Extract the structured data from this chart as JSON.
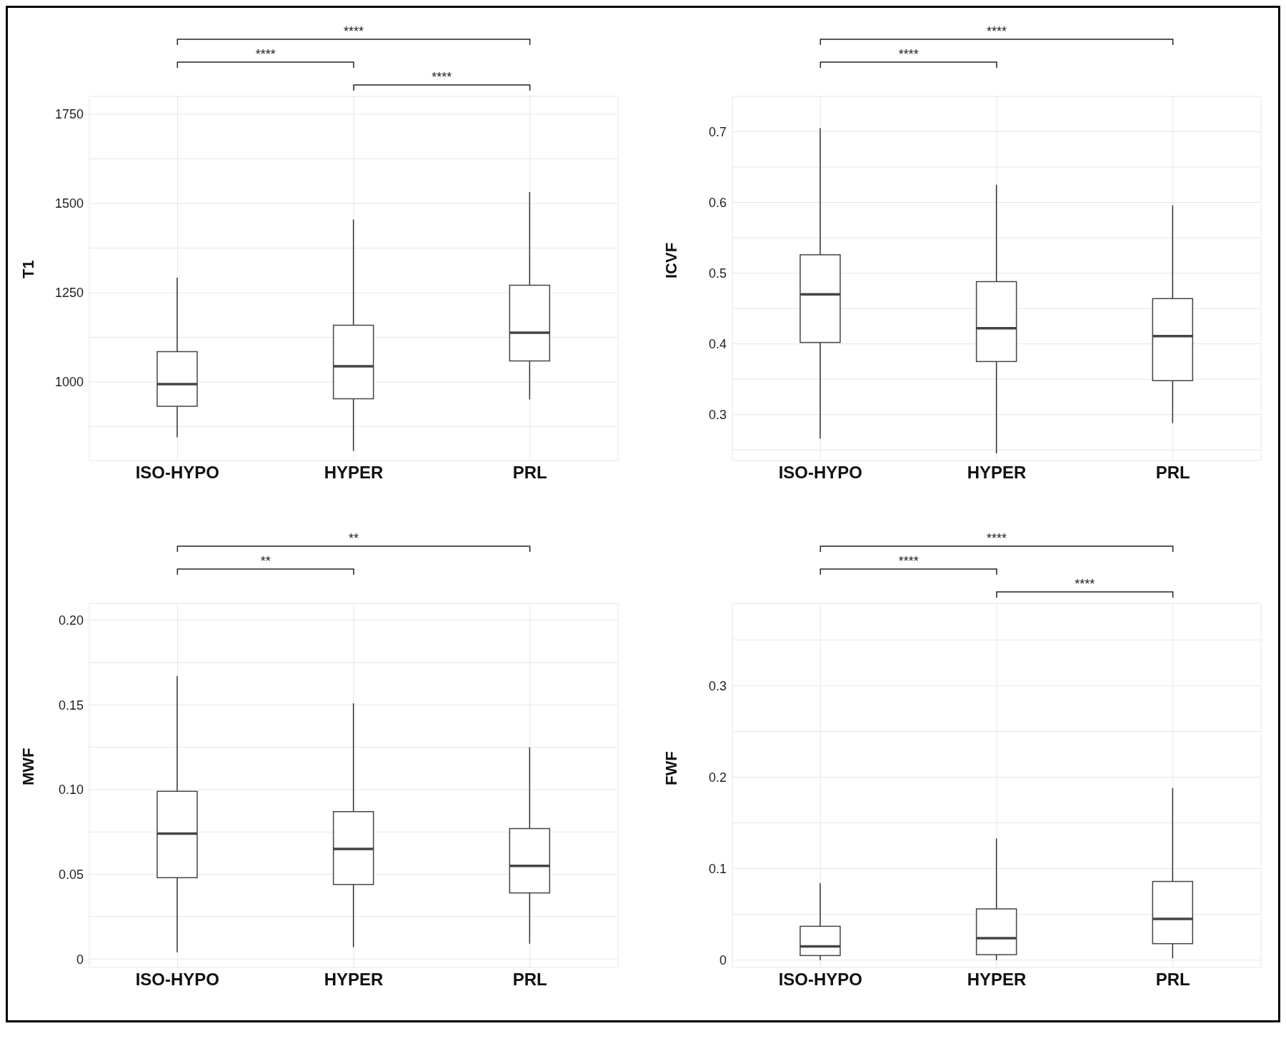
{
  "chart_data": [
    {
      "type": "box",
      "ylabel": "T1",
      "categories": [
        "ISO-HYPO",
        "HYPER",
        "PRL"
      ],
      "ylim": [
        780,
        1800
      ],
      "yticks": [
        {
          "value": 875,
          "label": null
        },
        1000,
        {
          "value": 1125,
          "label": null
        },
        1250,
        {
          "value": 1375,
          "label": null
        },
        1500,
        {
          "value": 1625,
          "label": null
        },
        1750
      ],
      "grid": true,
      "boxes": [
        {
          "low": 845,
          "q1": 932,
          "median": 994,
          "q3": 1085,
          "high": 1292
        },
        {
          "low": 807,
          "q1": 953,
          "median": 1044,
          "q3": 1159,
          "high": 1455
        },
        {
          "low": 951,
          "q1": 1059,
          "median": 1138,
          "q3": 1271,
          "high": 1532
        }
      ],
      "annotations": [
        "****",
        "****",
        "****"
      ]
    },
    {
      "type": "box",
      "ylabel": "ICVF",
      "categories": [
        "ISO-HYPO",
        "HYPER",
        "PRL"
      ],
      "ylim": [
        0.235,
        0.75
      ],
      "yticks": [
        {
          "value": 0.25,
          "label": null
        },
        0.3,
        {
          "value": 0.35,
          "label": null
        },
        0.4,
        {
          "value": 0.45,
          "label": null
        },
        0.5,
        {
          "value": 0.55,
          "label": null
        },
        0.6,
        {
          "value": 0.65,
          "label": null
        },
        0.7
      ],
      "grid": true,
      "boxes": [
        {
          "low": 0.266,
          "q1": 0.402,
          "median": 0.47,
          "q3": 0.526,
          "high": 0.705
        },
        {
          "low": 0.245,
          "q1": 0.375,
          "median": 0.422,
          "q3": 0.488,
          "high": 0.625
        },
        {
          "low": 0.288,
          "q1": 0.348,
          "median": 0.411,
          "q3": 0.464,
          "high": 0.596
        }
      ],
      "annotations": [
        "****",
        "****"
      ]
    },
    {
      "type": "box",
      "ylabel": "MWF",
      "categories": [
        "ISO-HYPO",
        "HYPER",
        "PRL"
      ],
      "ylim": [
        -0.005,
        0.21
      ],
      "yticks": [
        0,
        {
          "value": 0.025,
          "label": null
        },
        0.05,
        {
          "value": 0.075,
          "label": null
        },
        {
          "value": 0.1,
          "label": "0.10"
        },
        {
          "value": 0.125,
          "label": null
        },
        {
          "value": 0.15,
          "label": "0.15"
        },
        {
          "value": 0.175,
          "label": null
        },
        {
          "value": 0.2,
          "label": "0.20"
        }
      ],
      "grid": true,
      "boxes": [
        {
          "low": 0.004,
          "q1": 0.048,
          "median": 0.074,
          "q3": 0.099,
          "high": 0.167
        },
        {
          "low": 0.007,
          "q1": 0.044,
          "median": 0.065,
          "q3": 0.087,
          "high": 0.151
        },
        {
          "low": 0.009,
          "q1": 0.039,
          "median": 0.055,
          "q3": 0.077,
          "high": 0.125
        }
      ],
      "annotations": [
        "**",
        "**"
      ]
    },
    {
      "type": "box",
      "ylabel": "FWF",
      "categories": [
        "ISO-HYPO",
        "HYPER",
        "PRL"
      ],
      "ylim": [
        -0.008,
        0.39
      ],
      "yticks": [
        0,
        {
          "value": 0.05,
          "label": null
        },
        0.1,
        {
          "value": 0.15,
          "label": null
        },
        0.2,
        {
          "value": 0.25,
          "label": null
        },
        0.3,
        {
          "value": 0.35,
          "label": null
        }
      ],
      "grid": true,
      "boxes": [
        {
          "low": 0,
          "q1": 0.005,
          "median": 0.015,
          "q3": 0.037,
          "high": 0.084
        },
        {
          "low": 0,
          "q1": 0.006,
          "median": 0.024,
          "q3": 0.056,
          "high": 0.133
        },
        {
          "low": 0.002,
          "q1": 0.018,
          "median": 0.045,
          "q3": 0.086,
          "high": 0.188
        }
      ],
      "annotations": [
        "****",
        "****",
        "****"
      ]
    }
  ]
}
